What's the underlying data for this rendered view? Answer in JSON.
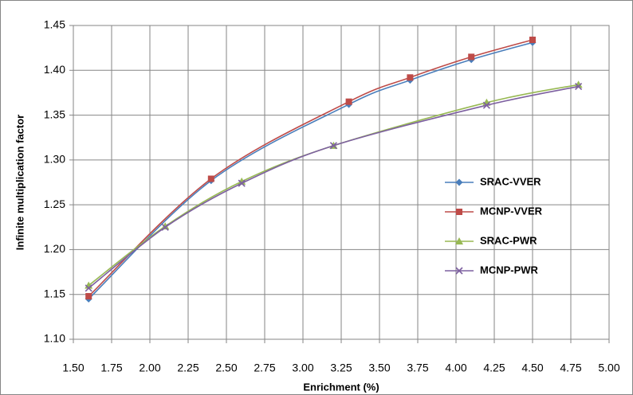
{
  "chart_data": {
    "type": "line",
    "smooth": true,
    "x_label": "Enrichment (%)",
    "y_label": "Infinite multiplication factor",
    "xlim": [
      1.5,
      5
    ],
    "ylim": [
      1.1,
      1.45
    ],
    "grid": true,
    "legend": "right",
    "xticks": [
      {
        "value": 1.5,
        "label": "1.50"
      },
      1.75,
      {
        "value": 2,
        "label": "2.00"
      },
      2.25,
      {
        "value": 2.5,
        "label": "2.50"
      },
      2.75,
      {
        "value": 3,
        "label": "3.00"
      },
      3.25,
      {
        "value": 3.5,
        "label": "3.50"
      },
      3.75,
      {
        "value": 4,
        "label": "4.00"
      },
      4.25,
      {
        "value": 4.5,
        "label": "4.50"
      },
      4.75,
      {
        "value": 5,
        "label": "5.00"
      }
    ],
    "yticks": [
      {
        "value": 1.1,
        "label": "1.10"
      },
      1.15,
      {
        "value": 1.2,
        "label": "1.20"
      },
      1.25,
      {
        "value": 1.3,
        "label": "1.30"
      },
      1.35,
      {
        "value": 1.4,
        "label": "1.40"
      },
      1.45
    ],
    "series": [
      {
        "name": "SRAC-VVER",
        "color": "#4a7ebb",
        "marker": "diamond",
        "x": [
          1.6,
          2.4,
          3.3,
          3.7,
          4.1,
          4.5
        ],
        "values": [
          1.145,
          1.277,
          1.362,
          1.389,
          1.412,
          1.431
        ]
      },
      {
        "name": "MCNP-VVER",
        "color": "#be4b48",
        "marker": "square",
        "x": [
          1.6,
          2.4,
          3.3,
          3.7,
          4.1,
          4.5
        ],
        "values": [
          1.148,
          1.279,
          1.365,
          1.392,
          1.415,
          1.434
        ]
      },
      {
        "name": "SRAC-PWR",
        "color": "#98b954",
        "marker": "triangle",
        "x": [
          1.6,
          2.1,
          2.6,
          3.2,
          4.2,
          4.8
        ],
        "values": [
          1.16,
          1.226,
          1.276,
          1.316,
          1.364,
          1.384
        ]
      },
      {
        "name": "MCNP-PWR",
        "color": "#7d60a0",
        "marker": "x",
        "x": [
          1.6,
          2.1,
          2.6,
          3.2,
          4.2,
          4.8
        ],
        "values": [
          1.157,
          1.225,
          1.274,
          1.316,
          1.361,
          1.382
        ]
      }
    ]
  }
}
